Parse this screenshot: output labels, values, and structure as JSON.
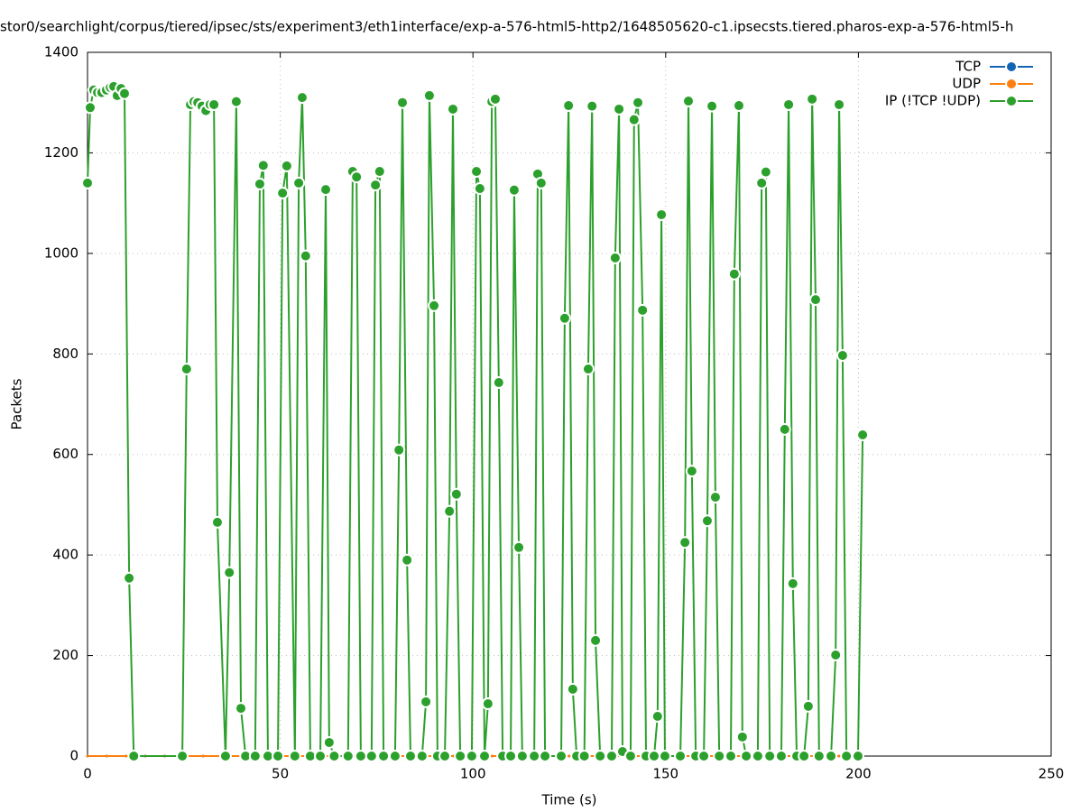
{
  "chart_data": {
    "type": "line",
    "title": "stor0/searchlight/corpus/tiered/ipsec/sts/experiment3/eth1interface/exp-a-576-html5-http2/1648505620-c1.ipsecsts.tiered.pharos-exp-a-576-html5-h",
    "x_label": "Time (s)",
    "y_label": "Packets",
    "xlim": [
      0,
      250
    ],
    "xticks": [
      0,
      50,
      100,
      150,
      200,
      250
    ],
    "ylim": [
      0,
      1400
    ],
    "yticks": [
      0,
      200,
      400,
      600,
      800,
      1000,
      1200,
      1400
    ],
    "grid": true,
    "legend": "top-right",
    "series": [
      {
        "name": "TCP",
        "color": "#1464b4",
        "x": [
          0,
          5,
          10,
          15,
          20,
          25,
          30,
          35,
          40,
          45,
          50,
          55,
          60,
          65,
          70,
          75,
          80,
          85,
          90,
          95,
          100,
          105,
          110,
          115,
          120,
          125,
          130,
          135,
          140,
          145,
          150,
          155,
          160,
          165,
          170,
          175,
          180,
          185,
          190,
          195,
          200
        ],
        "values": [
          0,
          0,
          0,
          0,
          0,
          0,
          0,
          0,
          0,
          0,
          0,
          0,
          0,
          0,
          0,
          0,
          0,
          0,
          0,
          0,
          0,
          0,
          0,
          0,
          0,
          0,
          0,
          0,
          0,
          0,
          0,
          0,
          0,
          0,
          0,
          0,
          0,
          0,
          0,
          0,
          0
        ]
      },
      {
        "name": "UDP",
        "color": "#ff7f0e",
        "x": [
          0,
          5,
          10,
          15,
          20,
          25,
          30,
          35,
          40,
          45,
          50,
          55,
          60,
          65,
          70,
          75,
          80,
          85,
          90,
          95,
          100,
          105,
          110,
          115,
          120,
          125,
          130,
          135,
          140,
          145,
          150,
          155,
          160,
          165,
          170,
          175,
          180,
          185,
          190,
          195,
          200
        ],
        "values": [
          0,
          0,
          0,
          0,
          0,
          0,
          0,
          0,
          0,
          0,
          0,
          0,
          0,
          0,
          0,
          0,
          0,
          0,
          0,
          0,
          0,
          0,
          0,
          0,
          0,
          0,
          0,
          0,
          0,
          0,
          0,
          0,
          0,
          0,
          0,
          0,
          0,
          0,
          0,
          0,
          0
        ]
      },
      {
        "name": "IP (!TCP  !UDP)",
        "color": "#2ca02c",
        "x": [
          0,
          0.7,
          1.6,
          2.6,
          3.7,
          4.9,
          5.9,
          6.8,
          7.7,
          8.7,
          9.6,
          10.8,
          12,
          24.6,
          25.7,
          26.7,
          27.6,
          28.6,
          29.7,
          30.7,
          31.8,
          32.8,
          33.7,
          35.8,
          36.8,
          38.6,
          39.8,
          41,
          43.5,
          44.7,
          45.6,
          46.8,
          49.4,
          50.6,
          51.7,
          53.8,
          54.8,
          55.7,
          56.6,
          57.8,
          60.4,
          61.8,
          62.7,
          64,
          67.6,
          68.8,
          69.8,
          70.9,
          73.7,
          74.7,
          75.8,
          76.8,
          79.8,
          80.8,
          81.7,
          82.9,
          83.8,
          86.8,
          87.8,
          88.7,
          89.9,
          90.8,
          92.7,
          93.9,
          94.8,
          95.7,
          96.7,
          99.7,
          100.9,
          101.8,
          103,
          103.9,
          104.9,
          105.8,
          106.7,
          107.7,
          109.8,
          110.7,
          111.9,
          112.8,
          115.9,
          116.8,
          117.7,
          118.7,
          122.9,
          123.8,
          124.8,
          125.9,
          126.9,
          128.9,
          129.9,
          130.9,
          131.8,
          133,
          136,
          136.9,
          137.9,
          138.8,
          140.9,
          141.8,
          142.8,
          144,
          144.9,
          147,
          147.9,
          148.9,
          149.8,
          153.8,
          155,
          155.9,
          156.8,
          157.8,
          159.9,
          160.8,
          162,
          162.9,
          163.9,
          166.9,
          167.8,
          169,
          169.9,
          170.9,
          173.9,
          174.9,
          176,
          177,
          180,
          180.9,
          181.9,
          183,
          184,
          185.9,
          187,
          188,
          188.9,
          189.8,
          192.9,
          194.1,
          195,
          195.9,
          196.9,
          199.9,
          201.1
        ],
        "values": [
          1140,
          1290,
          1325,
          1320,
          1320,
          1325,
          1330,
          1332,
          1314,
          1328,
          1318,
          354,
          0,
          0,
          770,
          1296,
          1302,
          1300,
          1293,
          1284,
          1296,
          1296,
          465,
          0,
          365,
          1302,
          95,
          0,
          0,
          1138,
          1175,
          0,
          0,
          1120,
          1174,
          0,
          1140,
          1310,
          995,
          0,
          0,
          1127,
          27,
          0,
          0,
          1163,
          1152,
          0,
          0,
          1136,
          1163,
          0,
          0,
          609,
          1300,
          390,
          0,
          0,
          108,
          1314,
          896,
          0,
          0,
          487,
          1287,
          521,
          0,
          0,
          1163,
          1129,
          0,
          104,
          1302,
          1307,
          743,
          0,
          0,
          1126,
          415,
          0,
          0,
          1158,
          1140,
          0,
          0,
          871,
          1294,
          133,
          0,
          0,
          770,
          1293,
          230,
          0,
          0,
          991,
          1287,
          9,
          0,
          1266,
          1300,
          887,
          0,
          0,
          79,
          1077,
          0,
          0,
          425,
          1303,
          567,
          0,
          0,
          468,
          1293,
          515,
          0,
          0,
          959,
          1294,
          38,
          0,
          0,
          1140,
          1162,
          0,
          0,
          650,
          1296,
          343,
          0,
          0,
          99,
          1307,
          908,
          0,
          0,
          201,
          1296,
          797,
          0,
          0,
          639
        ]
      }
    ]
  }
}
